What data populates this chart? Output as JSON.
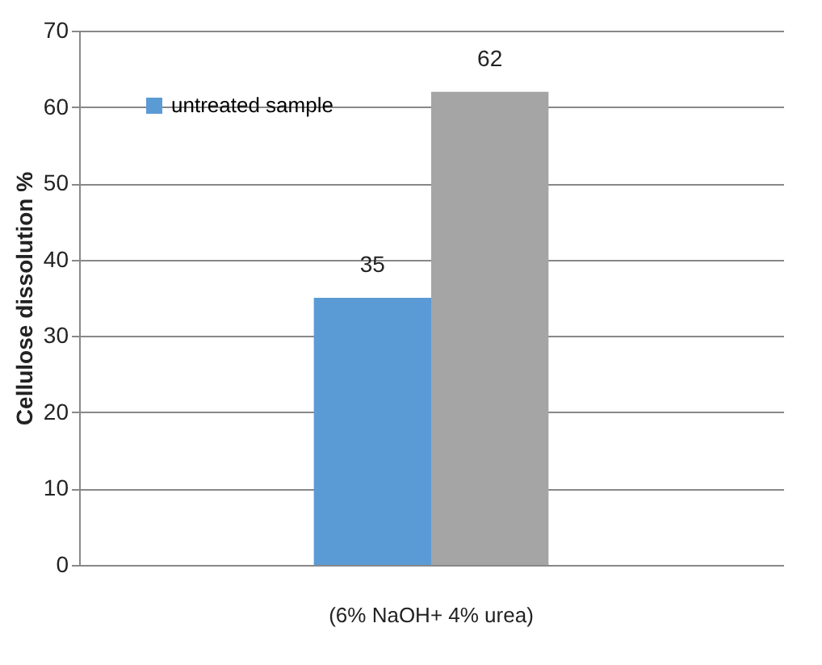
{
  "chart_data": {
    "type": "bar",
    "ylabel": "Cellulose dissolution %",
    "categories": [
      "(6% NaOH+ 4% urea)"
    ],
    "series": [
      {
        "name": "untreated sample",
        "color": "#5b9bd5",
        "values": [
          35
        ]
      },
      {
        "color": "#a5a5a5",
        "values": [
          62
        ]
      }
    ],
    "ylim": [
      0,
      70
    ],
    "yticks": [
      0,
      10,
      20,
      30,
      40,
      50,
      60,
      70
    ],
    "grid": "y",
    "legend": "top left",
    "data_labels": true
  }
}
